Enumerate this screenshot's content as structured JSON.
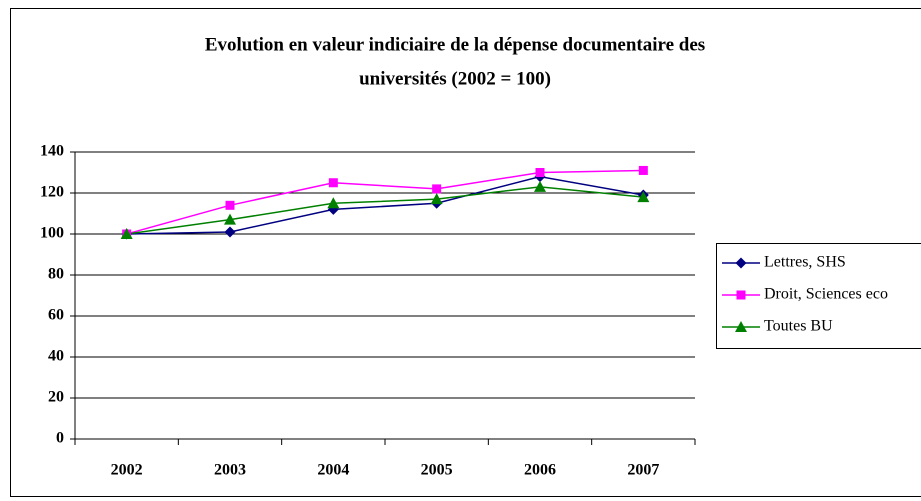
{
  "chart_data": {
    "type": "line",
    "title": [
      "Evolution en valeur indiciaire de la dépense documentaire des",
      "universités (2002 = 100)"
    ],
    "categories": [
      "2002",
      "2003",
      "2004",
      "2005",
      "2006",
      "2007"
    ],
    "series": [
      {
        "name": "Lettres, SHS",
        "color": "#000080",
        "marker": "diamond",
        "values": [
          100,
          101,
          112,
          115,
          128,
          119
        ]
      },
      {
        "name": "Droit, Sciences eco",
        "color": "#ff00ff",
        "marker": "square",
        "values": [
          100,
          114,
          125,
          122,
          130,
          131
        ]
      },
      {
        "name": "Toutes BU",
        "color": "#008000",
        "marker": "triangle",
        "values": [
          100,
          107,
          115,
          117,
          123,
          118
        ]
      }
    ],
    "ylim": [
      0,
      140
    ],
    "yticks": [
      0,
      20,
      40,
      60,
      80,
      100,
      120,
      140
    ],
    "grid": true,
    "legend": "right"
  }
}
